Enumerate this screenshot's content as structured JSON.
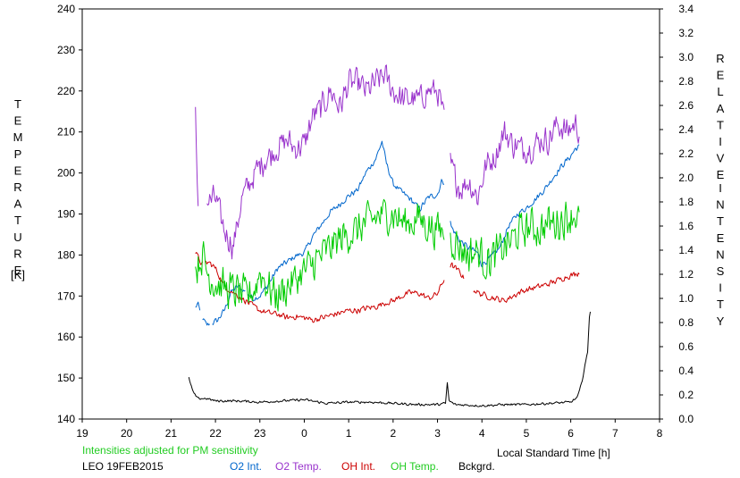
{
  "chart_data": {
    "type": "line",
    "x_range": [
      19,
      32
    ],
    "x_ticks": [
      {
        "v": 19,
        "label": "19"
      },
      {
        "v": 20,
        "label": "20"
      },
      {
        "v": 21,
        "label": "21"
      },
      {
        "v": 22,
        "label": "22"
      },
      {
        "v": 23,
        "label": "23"
      },
      {
        "v": 24,
        "label": "0"
      },
      {
        "v": 25,
        "label": "1"
      },
      {
        "v": 26,
        "label": "2"
      },
      {
        "v": 27,
        "label": "3"
      },
      {
        "v": 28,
        "label": "4"
      },
      {
        "v": 29,
        "label": "5"
      },
      {
        "v": 30,
        "label": "6"
      },
      {
        "v": 31,
        "label": "7"
      },
      {
        "v": 32,
        "label": "8"
      }
    ],
    "xlabel": "Local Standard Time [h]",
    "y_left": {
      "range": [
        140,
        240
      ],
      "ticks": [
        "140",
        "150",
        "160",
        "170",
        "180",
        "190",
        "200",
        "210",
        "220",
        "230",
        "240"
      ],
      "label_letters": [
        "T",
        "E",
        "M",
        "P",
        "E",
        "R",
        "A",
        "T",
        "U",
        "R",
        "E"
      ],
      "unit": "[K]"
    },
    "y_right": {
      "range": [
        0.0,
        3.4
      ],
      "ticks": [
        "0.0",
        "0.2",
        "0.4",
        "0.6",
        "0.8",
        "1.0",
        "1.2",
        "1.4",
        "1.6",
        "1.8",
        "2.0",
        "2.2",
        "2.4",
        "2.6",
        "2.8",
        "3.0",
        "3.2",
        "3.4"
      ],
      "label_word1": [
        "R",
        "E",
        "L",
        "A",
        "T",
        "I",
        "V",
        "E"
      ],
      "label_word2": [
        "I",
        "N",
        "T",
        "E",
        "N",
        "S",
        "I",
        "T",
        "Y"
      ]
    },
    "series": [
      {
        "name": "O2 Int.",
        "axis": "right",
        "color": "#0066cc",
        "jitter": 0.03,
        "points": [
          [
            21.55,
            0.92
          ],
          [
            21.6,
            0.96
          ],
          [
            21.68,
            0.85
          ],
          [
            21.8,
            0.78
          ],
          [
            21.95,
            0.8
          ],
          [
            22.05,
            0.82
          ],
          [
            22.2,
            0.9
          ],
          [
            22.35,
            1.05
          ],
          [
            22.5,
            1.1
          ],
          [
            22.7,
            1.05
          ],
          [
            22.85,
            1.0
          ],
          [
            23.0,
            1.02
          ],
          [
            23.2,
            1.12
          ],
          [
            23.4,
            1.25
          ],
          [
            23.6,
            1.3
          ],
          [
            23.8,
            1.35
          ],
          [
            24.0,
            1.38
          ],
          [
            24.2,
            1.52
          ],
          [
            24.4,
            1.62
          ],
          [
            24.6,
            1.72
          ],
          [
            24.8,
            1.78
          ],
          [
            25.0,
            1.85
          ],
          [
            25.2,
            1.9
          ],
          [
            25.4,
            2.05
          ],
          [
            25.6,
            2.15
          ],
          [
            25.75,
            2.3
          ],
          [
            25.85,
            2.12
          ],
          [
            26.0,
            1.95
          ],
          [
            26.2,
            1.88
          ],
          [
            26.4,
            1.82
          ],
          [
            26.6,
            1.74
          ],
          [
            26.8,
            1.84
          ],
          [
            27.0,
            1.86
          ],
          [
            27.1,
            1.98
          ],
          [
            27.2,
            1.95
          ],
          [
            27.3,
            1.6
          ],
          [
            27.5,
            1.48
          ],
          [
            27.7,
            1.42
          ],
          [
            27.9,
            1.38
          ],
          [
            28.0,
            1.28
          ],
          [
            28.2,
            1.34
          ],
          [
            28.4,
            1.42
          ],
          [
            28.6,
            1.6
          ],
          [
            28.8,
            1.7
          ],
          [
            29.0,
            1.75
          ],
          [
            29.2,
            1.82
          ],
          [
            29.4,
            1.9
          ],
          [
            29.6,
            2.0
          ],
          [
            29.8,
            2.1
          ],
          [
            30.0,
            2.18
          ],
          [
            30.1,
            2.24
          ],
          [
            30.2,
            2.26
          ]
        ],
        "gaps": [
          [
            21.65,
            21.7
          ],
          [
            21.87,
            21.92
          ],
          [
            22.68,
            22.72
          ],
          [
            27.16,
            27.28
          ]
        ]
      },
      {
        "name": "O2 Temp.",
        "axis": "left",
        "color": "#9933cc",
        "jitter": 4.0,
        "points": [
          [
            21.55,
            214
          ],
          [
            21.6,
            194
          ],
          [
            21.85,
            193
          ],
          [
            22.0,
            194
          ],
          [
            22.2,
            186
          ],
          [
            22.4,
            182
          ],
          [
            22.6,
            194
          ],
          [
            22.8,
            198
          ],
          [
            23.0,
            202
          ],
          [
            23.2,
            204
          ],
          [
            23.4,
            206
          ],
          [
            23.6,
            208
          ],
          [
            23.8,
            206
          ],
          [
            24.0,
            207
          ],
          [
            24.2,
            214
          ],
          [
            24.4,
            216
          ],
          [
            24.6,
            220
          ],
          [
            24.8,
            216
          ],
          [
            25.0,
            222
          ],
          [
            25.2,
            222
          ],
          [
            25.4,
            220
          ],
          [
            25.6,
            222
          ],
          [
            25.8,
            224
          ],
          [
            26.0,
            220
          ],
          [
            26.2,
            218
          ],
          [
            26.4,
            218
          ],
          [
            26.6,
            218
          ],
          [
            26.8,
            220
          ],
          [
            27.0,
            220
          ],
          [
            27.1,
            216
          ],
          [
            27.3,
            202
          ],
          [
            27.5,
            196
          ],
          [
            27.7,
            198
          ],
          [
            27.9,
            194
          ],
          [
            28.1,
            202
          ],
          [
            28.3,
            204
          ],
          [
            28.5,
            210
          ],
          [
            28.7,
            207
          ],
          [
            28.9,
            206
          ],
          [
            29.1,
            206
          ],
          [
            29.3,
            208
          ],
          [
            29.5,
            208
          ],
          [
            29.7,
            212
          ],
          [
            29.9,
            210
          ],
          [
            30.1,
            212
          ],
          [
            30.2,
            210
          ]
        ],
        "gaps": [
          [
            21.62,
            21.8
          ],
          [
            27.16,
            27.28
          ]
        ]
      },
      {
        "name": "OH Int.",
        "axis": "right",
        "color": "#cc0000",
        "jitter": 0.03,
        "points": [
          [
            21.55,
            1.38
          ],
          [
            21.7,
            1.28
          ],
          [
            21.85,
            1.3
          ],
          [
            22.0,
            1.25
          ],
          [
            22.2,
            1.1
          ],
          [
            22.4,
            1.05
          ],
          [
            22.6,
            1.0
          ],
          [
            22.8,
            0.95
          ],
          [
            23.0,
            0.9
          ],
          [
            23.2,
            0.88
          ],
          [
            23.4,
            0.87
          ],
          [
            23.6,
            0.84
          ],
          [
            23.8,
            0.85
          ],
          [
            24.0,
            0.84
          ],
          [
            24.2,
            0.82
          ],
          [
            24.4,
            0.84
          ],
          [
            24.6,
            0.86
          ],
          [
            24.8,
            0.88
          ],
          [
            25.0,
            0.9
          ],
          [
            25.2,
            0.9
          ],
          [
            25.4,
            0.92
          ],
          [
            25.6,
            0.93
          ],
          [
            25.8,
            0.96
          ],
          [
            26.0,
            0.98
          ],
          [
            26.2,
            1.02
          ],
          [
            26.4,
            1.05
          ],
          [
            26.6,
            1.04
          ],
          [
            26.8,
            1.0
          ],
          [
            27.0,
            1.04
          ],
          [
            27.1,
            1.12
          ],
          [
            27.3,
            1.28
          ],
          [
            27.5,
            1.22
          ],
          [
            27.7,
            1.1
          ],
          [
            27.9,
            1.05
          ],
          [
            28.1,
            1.02
          ],
          [
            28.3,
            1.0
          ],
          [
            28.5,
            0.98
          ],
          [
            28.7,
            1.02
          ],
          [
            28.9,
            1.06
          ],
          [
            29.1,
            1.08
          ],
          [
            29.3,
            1.1
          ],
          [
            29.5,
            1.12
          ],
          [
            29.7,
            1.15
          ],
          [
            29.9,
            1.18
          ],
          [
            30.1,
            1.2
          ],
          [
            30.2,
            1.22
          ]
        ],
        "gaps": [
          [
            21.72,
            21.76
          ],
          [
            27.16,
            27.28
          ],
          [
            27.6,
            27.8
          ]
        ]
      },
      {
        "name": "OH Temp.",
        "axis": "left",
        "color": "#00cc00",
        "jitter": 5.5,
        "points": [
          [
            21.55,
            176
          ],
          [
            21.7,
            180
          ],
          [
            21.85,
            175
          ],
          [
            22.0,
            173
          ],
          [
            22.2,
            172
          ],
          [
            22.5,
            171
          ],
          [
            22.7,
            170
          ],
          [
            22.9,
            172
          ],
          [
            23.0,
            176
          ],
          [
            23.2,
            172
          ],
          [
            23.4,
            170
          ],
          [
            23.6,
            172
          ],
          [
            23.8,
            174
          ],
          [
            24.0,
            176
          ],
          [
            24.2,
            178
          ],
          [
            24.4,
            180
          ],
          [
            24.6,
            182
          ],
          [
            24.8,
            184
          ],
          [
            25.0,
            185
          ],
          [
            25.2,
            186
          ],
          [
            25.4,
            188
          ],
          [
            25.6,
            189
          ],
          [
            25.8,
            190
          ],
          [
            26.0,
            190
          ],
          [
            26.2,
            188
          ],
          [
            26.4,
            188
          ],
          [
            26.6,
            189
          ],
          [
            26.8,
            187
          ],
          [
            27.0,
            186
          ],
          [
            27.1,
            186
          ],
          [
            27.3,
            184
          ],
          [
            27.5,
            182
          ],
          [
            27.7,
            180
          ],
          [
            27.9,
            181
          ],
          [
            28.1,
            178
          ],
          [
            28.3,
            180
          ],
          [
            28.5,
            182
          ],
          [
            28.7,
            184
          ],
          [
            28.9,
            186
          ],
          [
            29.1,
            187
          ],
          [
            29.3,
            186
          ],
          [
            29.5,
            188
          ],
          [
            29.7,
            188
          ],
          [
            29.9,
            189
          ],
          [
            30.1,
            190
          ],
          [
            30.2,
            188
          ]
        ],
        "gaps": [
          [
            27.16,
            27.28
          ]
        ]
      },
      {
        "name": "Bckgrd.",
        "axis": "right",
        "color": "#000000",
        "jitter": 0.012,
        "points": [
          [
            21.4,
            0.34
          ],
          [
            21.5,
            0.22
          ],
          [
            21.6,
            0.17
          ],
          [
            21.8,
            0.17
          ],
          [
            22.0,
            0.15
          ],
          [
            22.5,
            0.15
          ],
          [
            23.0,
            0.14
          ],
          [
            23.5,
            0.15
          ],
          [
            24.0,
            0.16
          ],
          [
            24.5,
            0.13
          ],
          [
            25.0,
            0.14
          ],
          [
            25.5,
            0.14
          ],
          [
            26.0,
            0.13
          ],
          [
            26.5,
            0.12
          ],
          [
            27.0,
            0.12
          ],
          [
            27.18,
            0.13
          ],
          [
            27.22,
            0.3
          ],
          [
            27.26,
            0.15
          ],
          [
            27.4,
            0.12
          ],
          [
            28.0,
            0.11
          ],
          [
            28.5,
            0.12
          ],
          [
            29.0,
            0.12
          ],
          [
            29.5,
            0.13
          ],
          [
            30.0,
            0.14
          ],
          [
            30.15,
            0.18
          ],
          [
            30.25,
            0.3
          ],
          [
            30.32,
            0.45
          ],
          [
            30.38,
            0.55
          ],
          [
            30.42,
            0.85
          ],
          [
            30.45,
            0.92
          ]
        ],
        "gaps": []
      }
    ]
  },
  "footer": {
    "note": "Intensities adjusted for PM sensitivity",
    "note_color": "#22cc22",
    "station": "LEO 19FEB2015",
    "legend_o2_int": "O2 Int.",
    "legend_o2_temp": "O2 Temp.",
    "legend_oh_int": "OH Int.",
    "legend_oh_temp": "OH Temp.",
    "legend_bckgrd": "Bckgrd."
  }
}
